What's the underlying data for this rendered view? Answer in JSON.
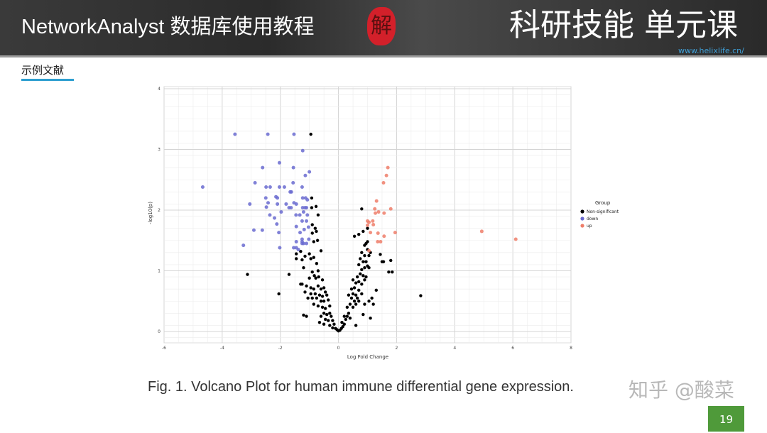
{
  "header": {
    "title": "NetworkAnalyst 数据库使用教程",
    "seal_text": "解",
    "course": "科研技能 单元课",
    "url": "www.helixlife.cn/"
  },
  "section_label": "示例文献",
  "caption": "Fig. 1. Volcano Plot for human immune differential gene expression.",
  "watermark": "知乎 @酸菜",
  "page_number": "19",
  "colors": {
    "non_significant": "#000000",
    "down": "#6a6bd0",
    "up": "#ee7e6a",
    "accent": "#2e9fd0",
    "page_box": "#4f9a3a"
  },
  "chart_data": {
    "type": "scatter",
    "title": "",
    "xlabel": "Log Fold Change",
    "ylabel": "-log10(p)",
    "xlim": [
      -6,
      8
    ],
    "ylim": [
      0,
      4
    ],
    "xticks": [
      "-6",
      "-4",
      "-2",
      "0",
      "2",
      "4",
      "6",
      "8"
    ],
    "yticks": [
      "0",
      "1",
      "2",
      "3",
      "4"
    ],
    "grid": true,
    "legend": {
      "title": "Group",
      "placement": "right",
      "entries": [
        "Non-significant",
        "down",
        "up"
      ]
    },
    "series": [
      {
        "name": "Non-significant",
        "color": "#000000",
        "points": [
          [
            -0.95,
            3.25
          ],
          [
            -3.13,
            0.94
          ],
          [
            -1.7,
            0.94
          ],
          [
            -2.05,
            0.62
          ],
          [
            2.83,
            0.59
          ],
          [
            0.8,
            2.02
          ],
          [
            -0.92,
            2.2
          ],
          [
            -0.77,
            2.06
          ],
          [
            -0.7,
            1.92
          ],
          [
            -0.92,
            2.04
          ],
          [
            1.44,
            1.27
          ],
          [
            1.55,
            1.15
          ],
          [
            1.8,
            1.17
          ],
          [
            1.73,
            0.98
          ],
          [
            1.85,
            0.98
          ],
          [
            1.5,
            1.15
          ],
          [
            -1.2,
            0.27
          ],
          [
            -1.1,
            0.25
          ],
          [
            0.6,
            0.1
          ],
          [
            1.1,
            0.22
          ],
          [
            1.3,
            0.68
          ],
          [
            -0.9,
            1.76
          ],
          [
            -0.8,
            1.7
          ],
          [
            -0.76,
            1.65
          ],
          [
            -0.9,
            1.62
          ],
          [
            -0.85,
            1.48
          ],
          [
            -0.72,
            1.5
          ],
          [
            -1.45,
            1.28
          ],
          [
            -1.3,
            1.32
          ],
          [
            -1.45,
            1.2
          ],
          [
            -1.25,
            1.18
          ],
          [
            -1.2,
            1.05
          ],
          [
            -1.15,
            1.24
          ],
          [
            -1.0,
            1.28
          ],
          [
            -0.95,
            1.2
          ],
          [
            -0.85,
            1.22
          ],
          [
            -0.6,
            1.33
          ],
          [
            -0.75,
            1.12
          ],
          [
            -0.7,
            1.0
          ],
          [
            -0.9,
            0.98
          ],
          [
            -0.83,
            0.92
          ],
          [
            -0.78,
            0.88
          ],
          [
            -0.68,
            0.9
          ],
          [
            -0.55,
            0.85
          ],
          [
            -1.0,
            0.88
          ],
          [
            -1.25,
            0.78
          ],
          [
            -1.3,
            0.78
          ],
          [
            -1.1,
            0.75
          ],
          [
            -0.95,
            0.72
          ],
          [
            -0.85,
            0.7
          ],
          [
            -0.7,
            0.75
          ],
          [
            -0.6,
            0.7
          ],
          [
            -0.5,
            0.72
          ],
          [
            -0.45,
            0.65
          ],
          [
            -0.8,
            0.62
          ],
          [
            -0.65,
            0.6
          ],
          [
            -0.55,
            0.58
          ],
          [
            -0.4,
            0.6
          ],
          [
            -0.9,
            0.55
          ],
          [
            -0.75,
            0.55
          ],
          [
            -0.6,
            0.5
          ],
          [
            -0.5,
            0.5
          ],
          [
            -0.35,
            0.52
          ],
          [
            -0.85,
            0.45
          ],
          [
            -0.7,
            0.42
          ],
          [
            -0.55,
            0.4
          ],
          [
            -0.45,
            0.38
          ],
          [
            -0.3,
            0.42
          ],
          [
            -0.5,
            0.3
          ],
          [
            -0.4,
            0.28
          ],
          [
            -0.3,
            0.3
          ],
          [
            -0.25,
            0.25
          ],
          [
            -0.6,
            0.25
          ],
          [
            -0.45,
            0.2
          ],
          [
            -0.35,
            0.18
          ],
          [
            -0.2,
            0.18
          ],
          [
            -0.5,
            0.12
          ],
          [
            -0.3,
            0.1
          ],
          [
            -0.15,
            0.12
          ],
          [
            -0.2,
            0.06
          ],
          [
            -0.1,
            0.05
          ],
          [
            -0.05,
            0.03
          ],
          [
            0.0,
            0.01
          ],
          [
            0.05,
            0.02
          ],
          [
            0.1,
            0.05
          ],
          [
            0.15,
            0.08
          ],
          [
            0.2,
            0.12
          ],
          [
            0.12,
            0.15
          ],
          [
            0.25,
            0.2
          ],
          [
            0.3,
            0.25
          ],
          [
            0.2,
            0.25
          ],
          [
            0.35,
            0.3
          ],
          [
            0.4,
            0.22
          ],
          [
            0.3,
            0.4
          ],
          [
            0.4,
            0.45
          ],
          [
            0.5,
            0.4
          ],
          [
            0.45,
            0.55
          ],
          [
            0.55,
            0.5
          ],
          [
            0.6,
            0.45
          ],
          [
            0.35,
            0.6
          ],
          [
            0.5,
            0.62
          ],
          [
            0.6,
            0.6
          ],
          [
            0.65,
            0.55
          ],
          [
            0.7,
            0.5
          ],
          [
            0.45,
            0.7
          ],
          [
            0.55,
            0.72
          ],
          [
            0.7,
            0.68
          ],
          [
            0.8,
            0.62
          ],
          [
            0.6,
            0.8
          ],
          [
            0.7,
            0.82
          ],
          [
            0.8,
            0.78
          ],
          [
            0.5,
            0.85
          ],
          [
            0.9,
            0.85
          ],
          [
            0.65,
            0.9
          ],
          [
            0.75,
            0.95
          ],
          [
            0.85,
            0.92
          ],
          [
            0.95,
            0.9
          ],
          [
            0.8,
            1.02
          ],
          [
            0.9,
            1.05
          ],
          [
            1.0,
            1.08
          ],
          [
            0.7,
            1.1
          ],
          [
            0.85,
            1.15
          ],
          [
            0.95,
            1.15
          ],
          [
            1.05,
            1.05
          ],
          [
            0.75,
            1.2
          ],
          [
            0.9,
            1.25
          ],
          [
            1.05,
            1.25
          ],
          [
            0.8,
            1.3
          ],
          [
            1.0,
            1.35
          ],
          [
            0.95,
            1.45
          ],
          [
            1.0,
            1.48
          ],
          [
            0.9,
            1.42
          ],
          [
            1.1,
            1.3
          ],
          [
            0.55,
            1.57
          ],
          [
            0.7,
            1.6
          ],
          [
            0.85,
            1.65
          ],
          [
            1.0,
            1.7
          ],
          [
            1.15,
            0.55
          ],
          [
            1.05,
            0.5
          ],
          [
            1.2,
            0.45
          ],
          [
            0.9,
            0.45
          ],
          [
            0.85,
            0.28
          ],
          [
            -0.65,
            0.15
          ],
          [
            -1.05,
            0.55
          ],
          [
            -1.15,
            0.65
          ],
          [
            -0.95,
            0.62
          ]
        ]
      },
      {
        "name": "down",
        "color": "#6a6bd0",
        "points": [
          [
            -4.67,
            2.38
          ],
          [
            -3.56,
            3.25
          ],
          [
            -2.43,
            3.25
          ],
          [
            -1.53,
            3.25
          ],
          [
            -1.23,
            2.98
          ],
          [
            -2.03,
            2.78
          ],
          [
            -2.61,
            2.7
          ],
          [
            -1.55,
            2.7
          ],
          [
            -1.0,
            2.63
          ],
          [
            -1.14,
            2.57
          ],
          [
            -2.87,
            2.45
          ],
          [
            -1.56,
            2.45
          ],
          [
            -2.49,
            2.38
          ],
          [
            -2.35,
            2.38
          ],
          [
            -2.03,
            2.38
          ],
          [
            -1.86,
            2.38
          ],
          [
            -1.25,
            2.38
          ],
          [
            -1.66,
            2.3
          ],
          [
            -1.62,
            2.3
          ],
          [
            -2.15,
            2.22
          ],
          [
            -2.1,
            2.2
          ],
          [
            -2.5,
            2.2
          ],
          [
            -1.23,
            2.2
          ],
          [
            -1.13,
            2.2
          ],
          [
            -1.07,
            2.17
          ],
          [
            -2.42,
            2.12
          ],
          [
            -1.53,
            2.12
          ],
          [
            -1.45,
            2.1
          ],
          [
            -3.05,
            2.1
          ],
          [
            -2.1,
            2.1
          ],
          [
            -1.8,
            2.1
          ],
          [
            -2.48,
            2.05
          ],
          [
            -1.7,
            2.04
          ],
          [
            -1.63,
            2.04
          ],
          [
            -1.23,
            2.04
          ],
          [
            -1.15,
            2.04
          ],
          [
            -1.1,
            2.04
          ],
          [
            -1.97,
            1.97
          ],
          [
            -1.2,
            1.97
          ],
          [
            -2.36,
            1.92
          ],
          [
            -1.46,
            1.92
          ],
          [
            -1.33,
            1.92
          ],
          [
            -1.07,
            1.92
          ],
          [
            -2.2,
            1.87
          ],
          [
            -1.25,
            1.82
          ],
          [
            -1.1,
            1.82
          ],
          [
            -2.12,
            1.77
          ],
          [
            -1.45,
            1.73
          ],
          [
            -1.03,
            1.72
          ],
          [
            -1.18,
            1.68
          ],
          [
            -2.91,
            1.67
          ],
          [
            -2.62,
            1.67
          ],
          [
            -2.05,
            1.63
          ],
          [
            -1.32,
            1.63
          ],
          [
            -1.25,
            1.52
          ],
          [
            -1.25,
            1.48
          ],
          [
            -1.25,
            1.45
          ],
          [
            -1.2,
            1.45
          ],
          [
            -1.1,
            1.45
          ],
          [
            -1.02,
            1.52
          ],
          [
            -1.45,
            1.48
          ],
          [
            -3.27,
            1.42
          ],
          [
            -2.02,
            1.38
          ],
          [
            -1.54,
            1.38
          ],
          [
            -1.45,
            1.38
          ],
          [
            -1.38,
            1.35
          ]
        ]
      },
      {
        "name": "up",
        "color": "#ee7e6a",
        "points": [
          [
            1.7,
            2.7
          ],
          [
            1.65,
            2.57
          ],
          [
            1.55,
            2.45
          ],
          [
            1.31,
            2.15
          ],
          [
            1.25,
            2.02
          ],
          [
            1.8,
            2.02
          ],
          [
            1.38,
            1.97
          ],
          [
            1.27,
            1.95
          ],
          [
            1.57,
            1.95
          ],
          [
            1.0,
            1.82
          ],
          [
            1.05,
            1.8
          ],
          [
            1.18,
            1.82
          ],
          [
            1.2,
            1.76
          ],
          [
            1.0,
            1.75
          ],
          [
            1.95,
            1.63
          ],
          [
            1.1,
            1.63
          ],
          [
            1.36,
            1.62
          ],
          [
            1.57,
            1.57
          ],
          [
            1.35,
            1.48
          ],
          [
            1.45,
            1.48
          ],
          [
            1.05,
            1.33
          ],
          [
            4.93,
            1.65
          ],
          [
            6.1,
            1.52
          ]
        ]
      }
    ]
  }
}
